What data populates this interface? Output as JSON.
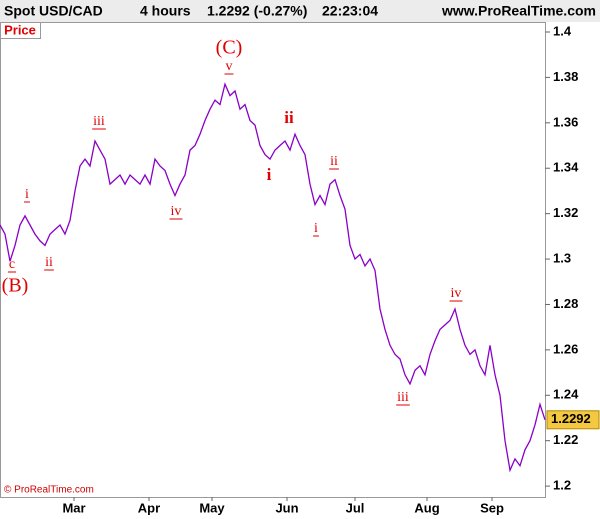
{
  "header": {
    "instrument": "Spot USD/CAD",
    "timeframe": "4 hours",
    "quote": "1.2292 (-0.27%)",
    "time": "22:23:04",
    "site": "www.ProRealTime.com"
  },
  "chart_data": {
    "type": "line",
    "panel_label": "Price",
    "footer": "© ProRealTime.com",
    "x": [
      0,
      1,
      2,
      3,
      4,
      5,
      6,
      7,
      8,
      9,
      10,
      11,
      12,
      13,
      14,
      15,
      16,
      17,
      18,
      19,
      20,
      21,
      22,
      23,
      24,
      25,
      26,
      27,
      28,
      29,
      30,
      31,
      32,
      33,
      34,
      35,
      36,
      37,
      38,
      39,
      40,
      41,
      42,
      43,
      44,
      45,
      46,
      47,
      48,
      49,
      50,
      51,
      52,
      53,
      54,
      55,
      56,
      57,
      58,
      59,
      60,
      61,
      62,
      63,
      64,
      65,
      66,
      67,
      68,
      69,
      70,
      71,
      72,
      73,
      74,
      75,
      76,
      77,
      78,
      79,
      80,
      81,
      82,
      83,
      84,
      85,
      86,
      87,
      88,
      89,
      90,
      91,
      92,
      93,
      94,
      95,
      96,
      97,
      98,
      99,
      100,
      101,
      102,
      103,
      104,
      105,
      106,
      107,
      108,
      109
    ],
    "series": [
      {
        "name": "Spot USD/CAD",
        "color": "#8a00c8",
        "values": [
          1.315,
          1.311,
          1.299,
          1.306,
          1.315,
          1.319,
          1.315,
          1.311,
          1.308,
          1.306,
          1.311,
          1.313,
          1.315,
          1.311,
          1.317,
          1.33,
          1.341,
          1.344,
          1.341,
          1.352,
          1.348,
          1.344,
          1.333,
          1.335,
          1.337,
          1.333,
          1.337,
          1.335,
          1.333,
          1.337,
          1.333,
          1.344,
          1.341,
          1.339,
          1.333,
          1.328,
          1.333,
          1.337,
          1.348,
          1.35,
          1.355,
          1.361,
          1.366,
          1.37,
          1.368,
          1.377,
          1.372,
          1.374,
          1.366,
          1.368,
          1.361,
          1.359,
          1.35,
          1.346,
          1.344,
          1.348,
          1.35,
          1.352,
          1.348,
          1.355,
          1.35,
          1.346,
          1.333,
          1.324,
          1.328,
          1.324,
          1.333,
          1.335,
          1.328,
          1.322,
          1.306,
          1.3,
          1.302,
          1.297,
          1.3,
          1.295,
          1.278,
          1.269,
          1.262,
          1.258,
          1.256,
          1.249,
          1.245,
          1.251,
          1.253,
          1.249,
          1.258,
          1.264,
          1.269,
          1.271,
          1.273,
          1.278,
          1.269,
          1.262,
          1.258,
          1.26,
          1.253,
          1.249,
          1.262,
          1.249,
          1.24,
          1.22,
          1.207,
          1.212,
          1.209,
          1.216,
          1.22,
          1.227,
          1.236,
          1.2292
        ]
      }
    ],
    "xlim": [
      0,
      109
    ],
    "xticks": [
      {
        "value": 14.8,
        "label": "Mar"
      },
      {
        "value": 29.8,
        "label": "Apr"
      },
      {
        "value": 42.4,
        "label": "May"
      },
      {
        "value": 57.4,
        "label": "Jun"
      },
      {
        "value": 71,
        "label": "Jul"
      },
      {
        "value": 85.4,
        "label": "Aug"
      },
      {
        "value": 98.4,
        "label": "Sep"
      }
    ],
    "ylim": [
      1.1952,
      1.4044
    ],
    "yticks": [
      1.2,
      1.22,
      1.24,
      1.26,
      1.28,
      1.3,
      1.32,
      1.34,
      1.36,
      1.38,
      1.4
    ],
    "annotations": [
      "(C)",
      "v",
      "iii",
      "i",
      "ii",
      "iv",
      "c",
      "(B)",
      "i",
      "ii",
      "ii",
      "i",
      "iii",
      "iv"
    ]
  }
}
